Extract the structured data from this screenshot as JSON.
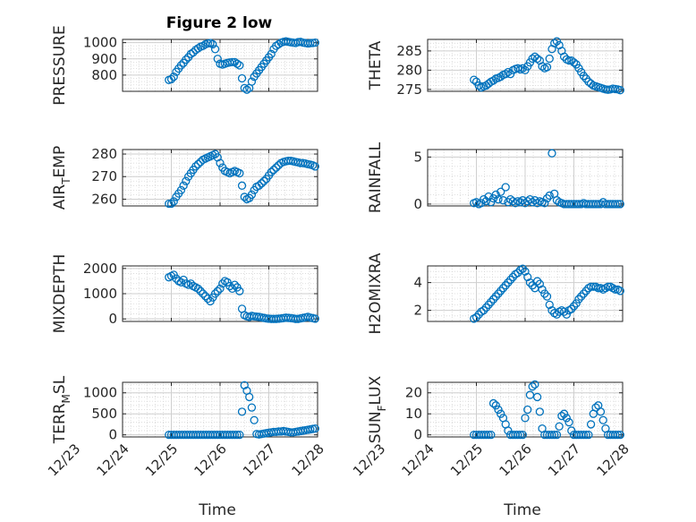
{
  "figure_title": "Figure 2 low",
  "marker_color": "#0072bd",
  "chart_data": [
    {
      "type": "scatter",
      "id": "pressure",
      "ylabel_main": "PRESSURE",
      "ylabel_sub": "",
      "ylabel_tail": "",
      "xlabel": "",
      "x_tick_labels": [],
      "xlim": [
        0,
        4
      ],
      "ylim": [
        700,
        1020
      ],
      "yticks": [
        800,
        900,
        1000
      ],
      "ytick_labels": [
        "800",
        "900",
        "1000"
      ],
      "grid": true,
      "x": [
        0.95,
        1.0,
        1.05,
        1.1,
        1.15,
        1.2,
        1.25,
        1.3,
        1.35,
        1.4,
        1.45,
        1.5,
        1.55,
        1.6,
        1.65,
        1.7,
        1.75,
        1.8,
        1.85,
        1.9,
        1.95,
        2.0,
        2.05,
        2.1,
        2.15,
        2.2,
        2.25,
        2.3,
        2.35,
        2.4,
        2.45,
        2.5,
        2.55,
        2.6,
        2.65,
        2.7,
        2.75,
        2.8,
        2.85,
        2.9,
        2.95,
        3.0,
        3.05,
        3.1,
        3.15,
        3.2,
        3.25,
        3.3,
        3.35,
        3.4,
        3.45,
        3.5,
        3.55,
        3.6,
        3.65,
        3.7,
        3.75,
        3.8,
        3.85,
        3.9,
        3.95
      ],
      "y": [
        770,
        775,
        790,
        820,
        840,
        860,
        875,
        895,
        910,
        930,
        940,
        955,
        965,
        975,
        980,
        990,
        995,
        998,
        990,
        960,
        900,
        870,
        865,
        870,
        875,
        878,
        880,
        880,
        870,
        860,
        780,
        720,
        710,
        720,
        760,
        790,
        810,
        830,
        850,
        870,
        890,
        910,
        930,
        960,
        980,
        990,
        1000,
        1005,
        1008,
        1005,
        1002,
        1000,
        998,
        1003,
        1005,
        1000,
        998,
        995,
        997,
        998,
        1000
      ]
    },
    {
      "type": "scatter",
      "id": "theta",
      "ylabel_main": "THETA",
      "ylabel_sub": "",
      "ylabel_tail": "",
      "xlabel": "",
      "x_tick_labels": [],
      "xlim": [
        0,
        4
      ],
      "ylim": [
        274.5,
        288
      ],
      "yticks": [
        275,
        280,
        285
      ],
      "ytick_labels": [
        "275",
        "280",
        "285"
      ],
      "grid": true,
      "x": [
        0.95,
        1.0,
        1.05,
        1.1,
        1.15,
        1.2,
        1.25,
        1.3,
        1.35,
        1.4,
        1.45,
        1.5,
        1.55,
        1.6,
        1.65,
        1.7,
        1.75,
        1.8,
        1.85,
        1.9,
        1.95,
        2.0,
        2.05,
        2.1,
        2.15,
        2.2,
        2.25,
        2.3,
        2.35,
        2.4,
        2.45,
        2.5,
        2.55,
        2.6,
        2.65,
        2.7,
        2.75,
        2.8,
        2.85,
        2.9,
        2.95,
        3.0,
        3.05,
        3.1,
        3.15,
        3.2,
        3.25,
        3.3,
        3.35,
        3.4,
        3.45,
        3.5,
        3.55,
        3.6,
        3.65,
        3.7,
        3.75,
        3.8,
        3.85,
        3.9,
        3.95
      ],
      "y": [
        277.5,
        277,
        276,
        275.5,
        275.8,
        276,
        276.5,
        277,
        277.3,
        277.8,
        278,
        278.3,
        278.8,
        279,
        279.5,
        279,
        280,
        280.3,
        280.5,
        280.2,
        280.5,
        280,
        281,
        282,
        283,
        283.5,
        283,
        282.5,
        281,
        280.5,
        280.8,
        283,
        285.5,
        287,
        287.5,
        286.5,
        285,
        283.5,
        282.8,
        282.5,
        282.5,
        282,
        281.5,
        280.5,
        279.5,
        278.5,
        277.8,
        277,
        276.5,
        276,
        275.8,
        275.6,
        275.4,
        275.2,
        275,
        274.9,
        275,
        275.2,
        275.1,
        275,
        274.8
      ]
    },
    {
      "type": "scatter",
      "id": "airtemp",
      "ylabel_main": "AIR",
      "ylabel_sub": "T",
      "ylabel_tail": "EMP",
      "xlabel": "",
      "x_tick_labels": [],
      "xlim": [
        0,
        4
      ],
      "ylim": [
        257,
        282
      ],
      "yticks": [
        260,
        270,
        280
      ],
      "ytick_labels": [
        "260",
        "270",
        "280"
      ],
      "grid": true,
      "x": [
        0.95,
        1.0,
        1.05,
        1.1,
        1.15,
        1.2,
        1.25,
        1.3,
        1.35,
        1.4,
        1.45,
        1.5,
        1.55,
        1.6,
        1.65,
        1.7,
        1.75,
        1.8,
        1.85,
        1.9,
        1.95,
        2.0,
        2.05,
        2.1,
        2.15,
        2.2,
        2.25,
        2.3,
        2.35,
        2.4,
        2.45,
        2.5,
        2.55,
        2.6,
        2.65,
        2.7,
        2.75,
        2.8,
        2.85,
        2.9,
        2.95,
        3.0,
        3.05,
        3.1,
        3.15,
        3.2,
        3.25,
        3.3,
        3.35,
        3.4,
        3.45,
        3.5,
        3.55,
        3.6,
        3.65,
        3.7,
        3.75,
        3.8,
        3.85,
        3.9,
        3.95
      ],
      "y": [
        258,
        258,
        259,
        261,
        262.5,
        264,
        266,
        268,
        270,
        271.5,
        273,
        274.5,
        275.5,
        276.5,
        277.5,
        278,
        278.5,
        279,
        279.5,
        280,
        278.5,
        276,
        274,
        272.5,
        272,
        271.5,
        272,
        272.5,
        272,
        271.5,
        266,
        261,
        260,
        260.5,
        262,
        264,
        265.5,
        266,
        267,
        268,
        269,
        270.5,
        272,
        273,
        274,
        275,
        276,
        276.5,
        276.8,
        277,
        277,
        276.8,
        276.5,
        276.3,
        276,
        276,
        275.8,
        275.5,
        275.3,
        275,
        274.5
      ]
    },
    {
      "type": "scatter",
      "id": "rainfall",
      "ylabel_main": "RAINFALL",
      "ylabel_sub": "",
      "ylabel_tail": "",
      "xlabel": "",
      "x_tick_labels": [],
      "xlim": [
        0,
        4
      ],
      "ylim": [
        -0.2,
        5.8
      ],
      "yticks": [
        0,
        5
      ],
      "ytick_labels": [
        "0",
        "5"
      ],
      "grid": true,
      "x": [
        0.95,
        1.0,
        1.05,
        1.1,
        1.15,
        1.2,
        1.25,
        1.3,
        1.35,
        1.4,
        1.45,
        1.5,
        1.55,
        1.6,
        1.65,
        1.7,
        1.75,
        1.8,
        1.85,
        1.9,
        1.95,
        2.0,
        2.05,
        2.1,
        2.15,
        2.2,
        2.25,
        2.3,
        2.35,
        2.4,
        2.45,
        2.5,
        2.55,
        2.6,
        2.65,
        2.7,
        2.75,
        2.8,
        2.85,
        2.9,
        2.95,
        3.0,
        3.05,
        3.1,
        3.15,
        3.2,
        3.25,
        3.3,
        3.35,
        3.4,
        3.45,
        3.5,
        3.55,
        3.6,
        3.65,
        3.7,
        3.75,
        3.8,
        3.85,
        3.9,
        3.95
      ],
      "y": [
        0.1,
        0.2,
        0,
        0.1,
        0.5,
        0.3,
        0.8,
        0.2,
        0.6,
        1.0,
        0.5,
        1.3,
        0.4,
        1.8,
        0.2,
        0.5,
        0.3,
        0.1,
        0.3,
        0.2,
        0.4,
        0.1,
        0.3,
        0.5,
        0.2,
        0.4,
        0.1,
        0.3,
        0.2,
        0.1,
        0.6,
        0.9,
        5.4,
        1.1,
        0.4,
        0.2,
        0.1,
        0,
        0,
        0,
        0,
        0,
        0,
        0,
        0,
        0.1,
        0,
        0,
        0,
        0,
        0,
        0,
        0,
        0.2,
        0,
        0,
        0,
        0,
        0,
        0,
        0
      ]
    },
    {
      "type": "scatter",
      "id": "mixdepth",
      "ylabel_main": "MIXDEPTH",
      "ylabel_sub": "",
      "ylabel_tail": "",
      "xlabel": "",
      "x_tick_labels": [],
      "xlim": [
        0,
        4
      ],
      "ylim": [
        -100,
        2100
      ],
      "yticks": [
        0,
        1000,
        2000
      ],
      "ytick_labels": [
        "0",
        "1000",
        "2000"
      ],
      "grid": true,
      "x": [
        0.95,
        1.0,
        1.05,
        1.1,
        1.15,
        1.2,
        1.25,
        1.3,
        1.35,
        1.4,
        1.45,
        1.5,
        1.55,
        1.6,
        1.65,
        1.7,
        1.75,
        1.8,
        1.85,
        1.9,
        1.95,
        2.0,
        2.05,
        2.1,
        2.15,
        2.2,
        2.25,
        2.3,
        2.35,
        2.4,
        2.45,
        2.5,
        2.55,
        2.6,
        2.65,
        2.7,
        2.75,
        2.8,
        2.85,
        2.9,
        2.95,
        3.0,
        3.05,
        3.1,
        3.15,
        3.2,
        3.25,
        3.3,
        3.35,
        3.4,
        3.45,
        3.5,
        3.55,
        3.6,
        3.65,
        3.7,
        3.75,
        3.8,
        3.85,
        3.9,
        3.95
      ],
      "y": [
        1650,
        1700,
        1750,
        1600,
        1500,
        1450,
        1550,
        1400,
        1350,
        1400,
        1300,
        1250,
        1200,
        1100,
        1000,
        900,
        800,
        700,
        850,
        1000,
        1100,
        1200,
        1400,
        1500,
        1450,
        1300,
        1200,
        1350,
        1250,
        1100,
        400,
        150,
        100,
        80,
        120,
        100,
        90,
        80,
        60,
        40,
        20,
        10,
        0,
        0,
        0,
        10,
        20,
        30,
        50,
        40,
        30,
        20,
        0,
        0,
        20,
        40,
        60,
        80,
        50,
        30,
        10
      ]
    },
    {
      "type": "scatter",
      "id": "h2omixra",
      "ylabel_main": "H2OMIXRA",
      "ylabel_sub": "",
      "ylabel_tail": "",
      "xlabel": "",
      "x_tick_labels": [],
      "xlim": [
        0,
        4
      ],
      "ylim": [
        1.2,
        5.2
      ],
      "yticks": [
        2,
        4
      ],
      "ytick_labels": [
        "2",
        "4"
      ],
      "grid": true,
      "x": [
        0.95,
        1.0,
        1.05,
        1.1,
        1.15,
        1.2,
        1.25,
        1.3,
        1.35,
        1.4,
        1.45,
        1.5,
        1.55,
        1.6,
        1.65,
        1.7,
        1.75,
        1.8,
        1.85,
        1.9,
        1.95,
        2.0,
        2.05,
        2.1,
        2.15,
        2.2,
        2.25,
        2.3,
        2.35,
        2.4,
        2.45,
        2.5,
        2.55,
        2.6,
        2.65,
        2.7,
        2.75,
        2.8,
        2.85,
        2.9,
        2.95,
        3.0,
        3.05,
        3.1,
        3.15,
        3.2,
        3.25,
        3.3,
        3.35,
        3.4,
        3.45,
        3.5,
        3.55,
        3.6,
        3.65,
        3.7,
        3.75,
        3.8,
        3.85,
        3.9,
        3.95
      ],
      "y": [
        1.4,
        1.5,
        1.7,
        1.9,
        2.0,
        2.2,
        2.4,
        2.6,
        2.8,
        3.0,
        3.2,
        3.4,
        3.6,
        3.8,
        4.0,
        4.2,
        4.4,
        4.6,
        4.7,
        4.9,
        5.0,
        4.8,
        4.4,
        4.0,
        3.8,
        3.6,
        4.1,
        3.9,
        3.5,
        3.2,
        3.0,
        2.4,
        2.0,
        1.8,
        1.7,
        1.9,
        2.0,
        1.9,
        1.7,
        2.0,
        2.1,
        2.3,
        2.5,
        2.8,
        3.0,
        3.2,
        3.4,
        3.6,
        3.7,
        3.7,
        3.7,
        3.6,
        3.6,
        3.5,
        3.6,
        3.7,
        3.7,
        3.6,
        3.5,
        3.5,
        3.4
      ]
    },
    {
      "type": "scatter",
      "id": "terrmsl",
      "ylabel_main": "TERR",
      "ylabel_sub": "M",
      "ylabel_tail": "SL",
      "xlabel": "Time",
      "x_tick_labels": [
        "12/23",
        "12/24",
        "12/25",
        "12/26",
        "12/27",
        "12/28"
      ],
      "xlim": [
        0,
        4
      ],
      "ylim": [
        -50,
        1250
      ],
      "yticks": [
        0,
        500,
        1000
      ],
      "ytick_labels": [
        "0",
        "500",
        "1000"
      ],
      "grid": true,
      "x": [
        0.95,
        1.0,
        1.05,
        1.1,
        1.15,
        1.2,
        1.25,
        1.3,
        1.35,
        1.4,
        1.45,
        1.5,
        1.55,
        1.6,
        1.65,
        1.7,
        1.75,
        1.8,
        1.85,
        1.9,
        1.95,
        2.0,
        2.05,
        2.1,
        2.15,
        2.2,
        2.25,
        2.3,
        2.35,
        2.4,
        2.45,
        2.5,
        2.55,
        2.6,
        2.65,
        2.7,
        2.75,
        2.8,
        2.85,
        2.9,
        2.95,
        3.0,
        3.05,
        3.1,
        3.15,
        3.2,
        3.25,
        3.3,
        3.35,
        3.4,
        3.45,
        3.5,
        3.55,
        3.6,
        3.65,
        3.7,
        3.75,
        3.8,
        3.85,
        3.9,
        3.95
      ],
      "y": [
        0,
        0,
        0,
        0,
        0,
        0,
        0,
        0,
        0,
        0,
        0,
        0,
        0,
        0,
        0,
        0,
        0,
        0,
        0,
        0,
        0,
        0,
        0,
        0,
        0,
        0,
        0,
        0,
        0,
        0,
        550,
        1180,
        1050,
        900,
        650,
        350,
        20,
        10,
        20,
        30,
        40,
        50,
        60,
        70,
        70,
        80,
        80,
        90,
        80,
        70,
        60,
        60,
        70,
        80,
        90,
        100,
        110,
        120,
        130,
        140,
        150
      ]
    },
    {
      "type": "scatter",
      "id": "sunflux",
      "ylabel_main": "SUN",
      "ylabel_sub": "F",
      "ylabel_tail": "LUX",
      "xlabel": "Time",
      "x_tick_labels": [
        "12/23",
        "12/24",
        "12/25",
        "12/26",
        "12/27",
        "12/28"
      ],
      "xlim": [
        0,
        4
      ],
      "ylim": [
        -1,
        25
      ],
      "yticks": [
        0,
        10,
        20
      ],
      "ytick_labels": [
        "0",
        "10",
        "20"
      ],
      "grid": true,
      "x": [
        0.95,
        1.0,
        1.05,
        1.1,
        1.15,
        1.2,
        1.25,
        1.3,
        1.35,
        1.4,
        1.45,
        1.5,
        1.55,
        1.6,
        1.65,
        1.7,
        1.75,
        1.8,
        1.85,
        1.9,
        1.95,
        2.0,
        2.05,
        2.1,
        2.15,
        2.2,
        2.25,
        2.3,
        2.35,
        2.4,
        2.45,
        2.5,
        2.55,
        2.6,
        2.65,
        2.7,
        2.75,
        2.8,
        2.85,
        2.9,
        2.95,
        3.0,
        3.05,
        3.1,
        3.15,
        3.2,
        3.25,
        3.3,
        3.35,
        3.4,
        3.45,
        3.5,
        3.55,
        3.6,
        3.65,
        3.7,
        3.75,
        3.8,
        3.85,
        3.9,
        3.95
      ],
      "y": [
        0,
        0,
        0,
        0,
        0,
        0,
        0,
        0,
        15,
        14,
        12,
        10,
        8,
        5,
        2,
        0,
        0,
        0,
        0,
        0,
        0,
        8,
        12,
        19,
        23,
        24,
        18,
        11,
        3,
        0,
        0,
        0,
        0,
        0,
        0,
        4,
        9,
        10,
        8,
        6,
        2,
        0,
        0,
        0,
        0,
        0,
        0,
        0,
        5,
        10,
        13,
        14,
        11,
        7,
        3,
        0,
        0,
        0,
        0,
        0,
        0
      ]
    }
  ]
}
